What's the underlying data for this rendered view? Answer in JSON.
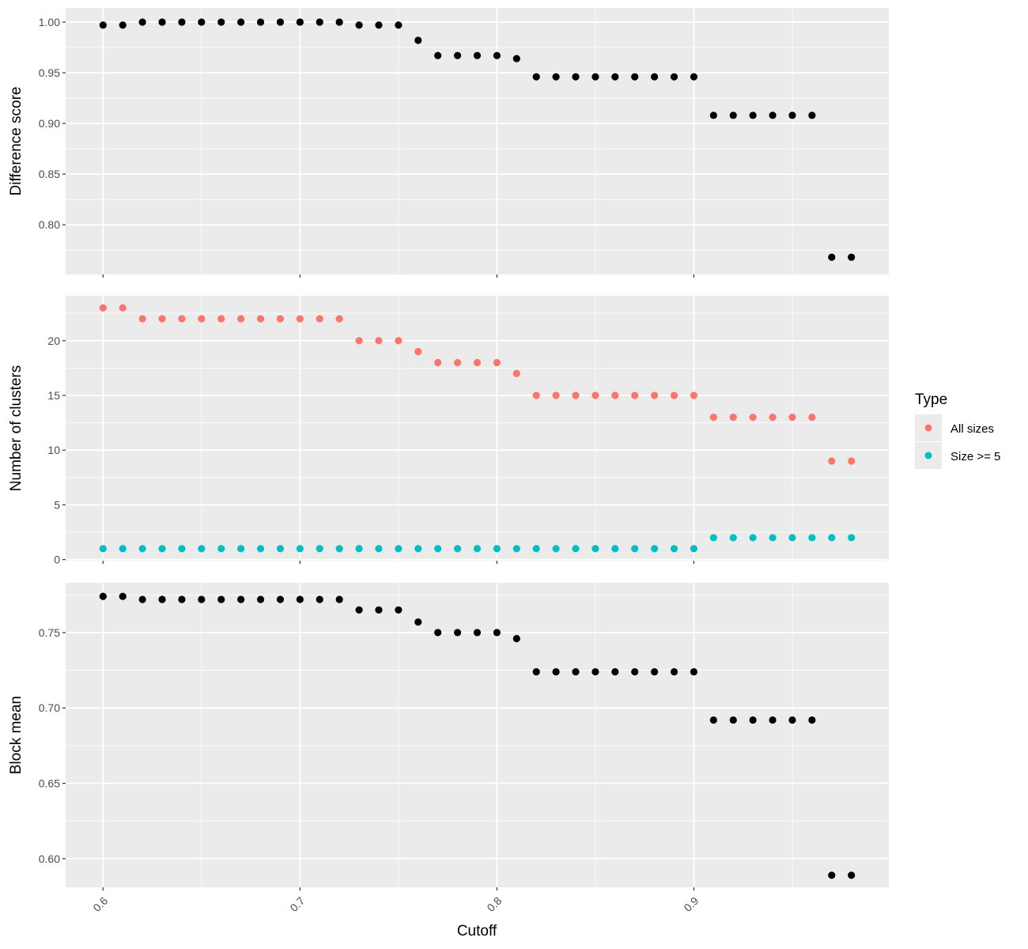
{
  "chart_data": {
    "type": "scatter",
    "xlabel": "Cutoff",
    "x_ticks": [
      "0.6",
      "0.7",
      "0.8",
      "0.9"
    ],
    "xlim": [
      0.581,
      0.999
    ],
    "x": [
      0.6,
      0.61,
      0.62,
      0.63,
      0.64,
      0.65,
      0.66,
      0.67,
      0.68,
      0.69,
      0.7,
      0.71,
      0.72,
      0.73,
      0.74,
      0.75,
      0.76,
      0.77,
      0.78,
      0.79,
      0.8,
      0.81,
      0.82,
      0.83,
      0.84,
      0.85,
      0.86,
      0.87,
      0.88,
      0.89,
      0.9,
      0.91,
      0.92,
      0.93,
      0.94,
      0.95,
      0.96,
      0.97,
      0.98
    ],
    "panels": [
      {
        "ylabel": "Difference score",
        "ylim": [
          0.751,
          1.014
        ],
        "y_ticks": [
          "0.80",
          "0.85",
          "0.90",
          "0.95",
          "1.00"
        ],
        "series": [
          {
            "color": "#000000",
            "values": [
              0.997,
              0.997,
              1.0,
              1.0,
              1.0,
              1.0,
              1.0,
              1.0,
              1.0,
              1.0,
              1.0,
              1.0,
              1.0,
              0.997,
              0.997,
              0.997,
              0.982,
              0.967,
              0.967,
              0.967,
              0.967,
              0.964,
              0.946,
              0.946,
              0.946,
              0.946,
              0.946,
              0.946,
              0.946,
              0.946,
              0.946,
              0.908,
              0.908,
              0.908,
              0.908,
              0.908,
              0.908,
              0.768,
              0.768
            ]
          }
        ]
      },
      {
        "ylabel": "Number of clusters",
        "ylim": [
          -0.1,
          24.1
        ],
        "y_ticks": [
          "0",
          "5",
          "10",
          "15",
          "20"
        ],
        "series": [
          {
            "name": "All sizes",
            "color": "#F8766D",
            "values": [
              23,
              23,
              22,
              22,
              22,
              22,
              22,
              22,
              22,
              22,
              22,
              22,
              22,
              20,
              20,
              20,
              19,
              18,
              18,
              18,
              18,
              17,
              15,
              15,
              15,
              15,
              15,
              15,
              15,
              15,
              15,
              13,
              13,
              13,
              13,
              13,
              13,
              9,
              9
            ]
          },
          {
            "name": "Size >= 5",
            "color": "#00BFC4",
            "values": [
              1,
              1,
              1,
              1,
              1,
              1,
              1,
              1,
              1,
              1,
              1,
              1,
              1,
              1,
              1,
              1,
              1,
              1,
              1,
              1,
              1,
              1,
              1,
              1,
              1,
              1,
              1,
              1,
              1,
              1,
              1,
              2,
              2,
              2,
              2,
              2,
              2,
              2,
              2
            ]
          }
        ]
      },
      {
        "ylabel": "Block mean",
        "ylim": [
          0.581,
          0.783
        ],
        "y_ticks": [
          "0.60",
          "0.65",
          "0.70",
          "0.75"
        ],
        "series": [
          {
            "color": "#000000",
            "values": [
              0.774,
              0.774,
              0.772,
              0.772,
              0.772,
              0.772,
              0.772,
              0.772,
              0.772,
              0.772,
              0.772,
              0.772,
              0.772,
              0.765,
              0.765,
              0.765,
              0.757,
              0.75,
              0.75,
              0.75,
              0.75,
              0.746,
              0.724,
              0.724,
              0.724,
              0.724,
              0.724,
              0.724,
              0.724,
              0.724,
              0.724,
              0.692,
              0.692,
              0.692,
              0.692,
              0.692,
              0.692,
              0.589,
              0.589
            ]
          }
        ]
      }
    ],
    "legend": {
      "title": "Type",
      "position": "right",
      "entries": [
        {
          "label": "All sizes",
          "color": "#F8766D"
        },
        {
          "label": "Size >= 5",
          "color": "#00BFC4"
        }
      ]
    },
    "grid": true,
    "panel_background": "#EBEBEB",
    "grid_color": "#FFFFFF"
  }
}
